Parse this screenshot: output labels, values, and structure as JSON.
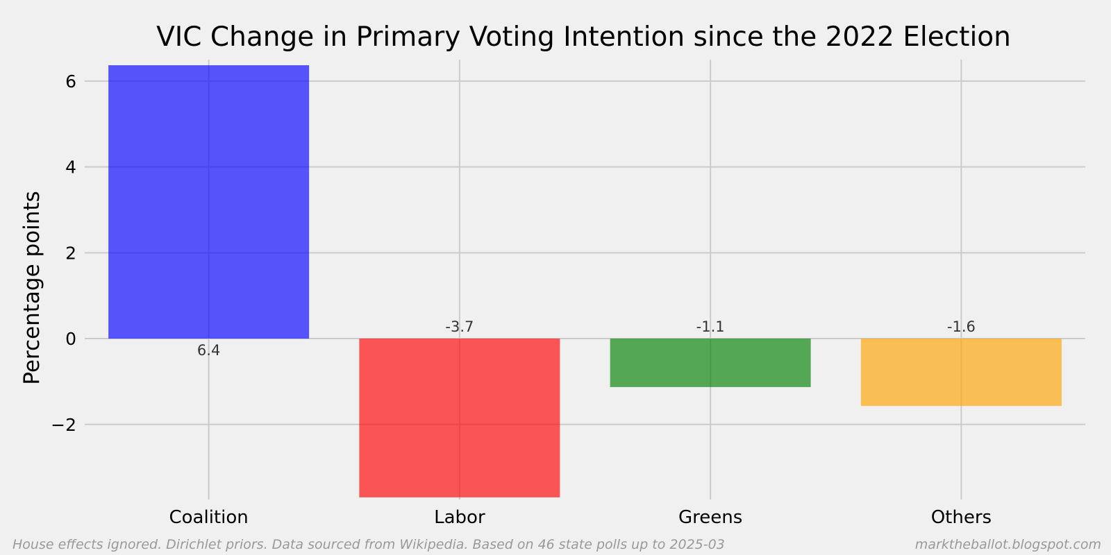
{
  "chart_data": {
    "type": "bar",
    "title": "VIC Change in Primary Voting Intention since the 2022 Election",
    "xlabel": "",
    "ylabel": "Percentage points",
    "categories": [
      "Coalition",
      "Labor",
      "Greens",
      "Others"
    ],
    "values": [
      6.37,
      -3.7,
      -1.13,
      -1.57
    ],
    "value_labels": [
      "6.4",
      "-3.7",
      "-1.1",
      "-1.6"
    ],
    "colors": [
      "#0000ff",
      "#ff0000",
      "#008000",
      "#ffa500"
    ],
    "bar_opacity": 0.65,
    "ylim": [
      -3.75,
      6.5
    ],
    "yticks": [
      -2,
      0,
      2,
      4,
      6
    ],
    "ytick_labels": [
      "−2",
      "0",
      "2",
      "4",
      "6"
    ],
    "grid": true,
    "legend": "none"
  },
  "footer": {
    "left": "House effects ignored. Dirichlet priors. Data sourced from Wikipedia. Based on 46 state polls up to 2025-03",
    "right": "marktheballot.blogspot.com"
  }
}
